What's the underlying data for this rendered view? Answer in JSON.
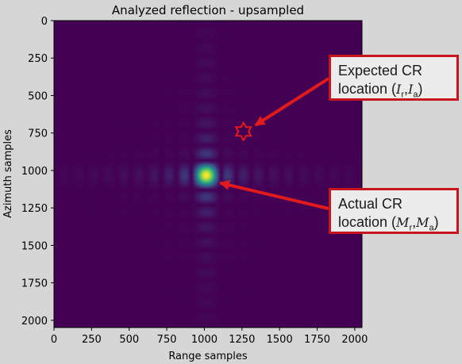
{
  "chart_data": {
    "type": "heatmap",
    "title": "Analyzed reflection - upsampled",
    "xlabel": "Range samples",
    "ylabel": "Azimuth samples",
    "xlim": [
      0,
      2048
    ],
    "ylim": [
      2048,
      0
    ],
    "x_ticks": [
      0,
      250,
      500,
      750,
      1000,
      1250,
      1500,
      1750,
      2000
    ],
    "y_ticks": [
      0,
      250,
      500,
      750,
      1000,
      1250,
      1500,
      1750,
      2000
    ],
    "colormap": "viridis",
    "peak": {
      "x": 1010,
      "y": 1030
    },
    "sidelobe_spacing": 100,
    "expected_marker": {
      "x": 1260,
      "y": 740,
      "shape": "hexagram"
    },
    "annotations": [
      {
        "line1": "Expected CR",
        "line2_prefix": "location (",
        "v1": "I",
        "s1": "r",
        "v2": "I",
        "s2": "a",
        "line2_suffix": ")",
        "target": "expected_marker"
      },
      {
        "line1": "Actual CR",
        "line2_prefix": "location (",
        "v1": "M",
        "s1": "r",
        "v2": "M",
        "s2": "a",
        "line2_suffix": ")",
        "target": "peak"
      }
    ],
    "accent_color": "#e31a1c"
  }
}
